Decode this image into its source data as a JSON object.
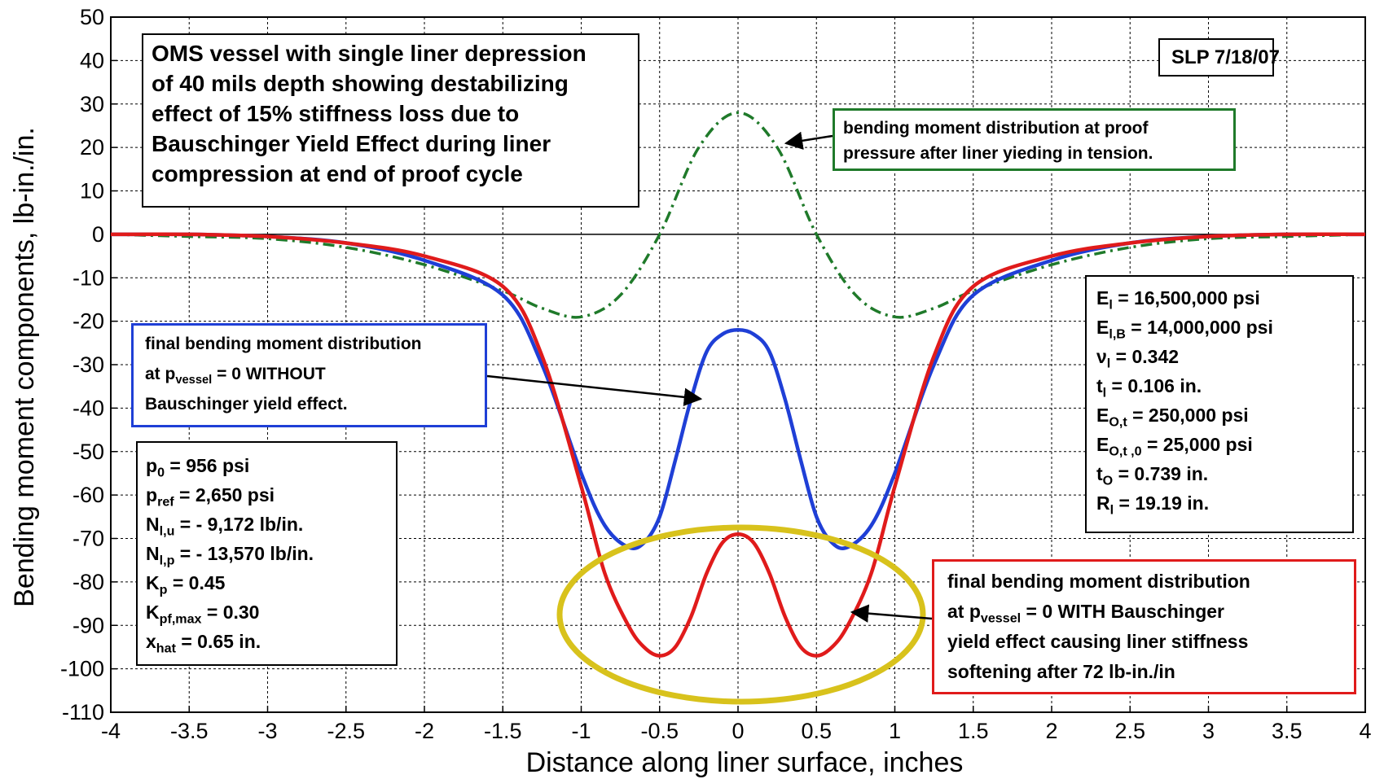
{
  "chart_data": {
    "type": "line",
    "xlabel": "Distance along liner surface, inches",
    "ylabel": "Bending moment components, lb-in./in.",
    "xlim": [
      -4,
      4
    ],
    "ylim": [
      -110,
      50
    ],
    "x_ticks": [
      "-4",
      "-3.5",
      "-3",
      "-2.5",
      "-2",
      "-1.5",
      "-1",
      "-0.5",
      "0",
      "0.5",
      "1",
      "1.5",
      "2",
      "2.5",
      "3",
      "3.5",
      "4"
    ],
    "y_ticks": [
      "50",
      "40",
      "30",
      "20",
      "10",
      "0",
      "-10",
      "-20",
      "-30",
      "-40",
      "-50",
      "-60",
      "-70",
      "-80",
      "-90",
      "-100",
      "-110"
    ],
    "grid": true,
    "series": [
      {
        "color": "#1f7a2a",
        "style": "dash-dot",
        "x": [
          -4,
          -3.5,
          -3,
          -2.5,
          -2,
          -1.5,
          -1.25,
          -1,
          -0.75,
          -0.5,
          -0.25,
          0,
          0.25,
          0.5,
          0.75,
          1,
          1.25,
          1.5,
          2,
          2.5,
          3,
          3.5,
          4
        ],
        "y": [
          0,
          -0.5,
          -1,
          -3,
          -7,
          -13,
          -17,
          -19,
          -14,
          0,
          20,
          28,
          20,
          0,
          -14,
          -19,
          -17,
          -13,
          -7,
          -3,
          -1,
          -0.5,
          0
        ]
      },
      {
        "color": "#1f3fd6",
        "style": "solid",
        "x": [
          -4,
          -3.5,
          -3,
          -2.5,
          -2,
          -1.5,
          -1.25,
          -1,
          -0.85,
          -0.7,
          -0.6,
          -0.5,
          -0.4,
          -0.3,
          -0.2,
          -0.1,
          0,
          0.1,
          0.2,
          0.3,
          0.4,
          0.5,
          0.6,
          0.7,
          0.85,
          1,
          1.25,
          1.5,
          2,
          2.5,
          3,
          3.5,
          4
        ],
        "y": [
          0,
          0,
          -0.5,
          -2,
          -6,
          -14,
          -30,
          -55,
          -67,
          -72,
          -71,
          -65,
          -52,
          -38,
          -27,
          -23,
          -22,
          -23,
          -27,
          -38,
          -52,
          -65,
          -71,
          -72,
          -67,
          -55,
          -30,
          -14,
          -6,
          -2,
          -0.5,
          0,
          0
        ]
      },
      {
        "color": "#e01b1b",
        "style": "solid",
        "x": [
          -4,
          -3.5,
          -3,
          -2.5,
          -2,
          -1.5,
          -1.25,
          -1,
          -0.85,
          -0.7,
          -0.6,
          -0.5,
          -0.4,
          -0.3,
          -0.2,
          -0.1,
          0,
          0.1,
          0.2,
          0.3,
          0.4,
          0.5,
          0.6,
          0.7,
          0.85,
          1,
          1.25,
          1.5,
          2,
          2.5,
          3,
          3.5,
          4
        ],
        "y": [
          0,
          0,
          -0.5,
          -2,
          -5,
          -12,
          -28,
          -58,
          -78,
          -90,
          -95,
          -97,
          -95,
          -88,
          -78,
          -71,
          -69,
          -71,
          -78,
          -88,
          -95,
          -97,
          -95,
          -90,
          -78,
          -58,
          -28,
          -12,
          -5,
          -2,
          -0.5,
          0,
          0
        ]
      }
    ]
  },
  "annotations": {
    "title_box": [
      "OMS vessel with single liner depression",
      "of 40 mils depth showing destabilizing",
      "effect of 15% stiffness loss due to",
      "Bauschinger Yield Effect during liner",
      "compression at end of proof cycle"
    ],
    "slp": "SLP  7/18/07",
    "proof_box": [
      "bending moment distribution at proof",
      "pressure after liner yieding in tension."
    ],
    "blue_box": {
      "line1": "final bending moment distribution",
      "line2_pre": "at  p",
      "line2_sub": "vessel",
      "line2_post": " = 0  WITHOUT",
      "line3": "Bauschinger yield effect."
    },
    "red_box": {
      "line1": "final bending moment distribution",
      "line2_pre": "at  p",
      "line2_sub": "vessel",
      "line2_post": " = 0  WITH Bauschinger",
      "line3": "yield effect causing liner stiffness",
      "line4": "softening after 72 lb-in./in"
    },
    "params": [
      {
        "sym": "p",
        "sub": "0",
        "val": " = 956 psi"
      },
      {
        "sym": "p",
        "sub": "ref",
        "val": " = 2,650 psi"
      },
      {
        "sym": "N",
        "sub": "l,u",
        "val": " = - 9,172 lb/in."
      },
      {
        "sym": "N",
        "sub": "l,p",
        "val": " = - 13,570 lb/in."
      },
      {
        "sym": "K",
        "sub": "p",
        "val": " = 0.45"
      },
      {
        "sym": "K",
        "sub": "pf,max",
        "val": " = 0.30"
      },
      {
        "sym": "x",
        "sub": "hat",
        "val": " = 0.65 in."
      }
    ],
    "material": [
      {
        "sym": "E",
        "sub": "l",
        "val": " = 16,500,000 psi"
      },
      {
        "sym": "E",
        "sub": "l,B",
        "val": " = 14,000,000 psi"
      },
      {
        "sym": "ν",
        "sub": "l",
        "val": " = 0.342"
      },
      {
        "sym": "t",
        "sub": "l",
        "val": " = 0.106 in."
      },
      {
        "sym": "E",
        "sub": "O,t",
        "val": "  = 250,000 psi"
      },
      {
        "sym": "E",
        "sub": "O,t ,0",
        "val": " = 25,000 psi"
      },
      {
        "sym": "t",
        "sub": "O",
        "val": " = 0.739 in."
      },
      {
        "sym": "R",
        "sub": "l",
        "val": " = 19.19 in."
      }
    ],
    "colors": {
      "ellipse": "#d8c21c"
    }
  }
}
